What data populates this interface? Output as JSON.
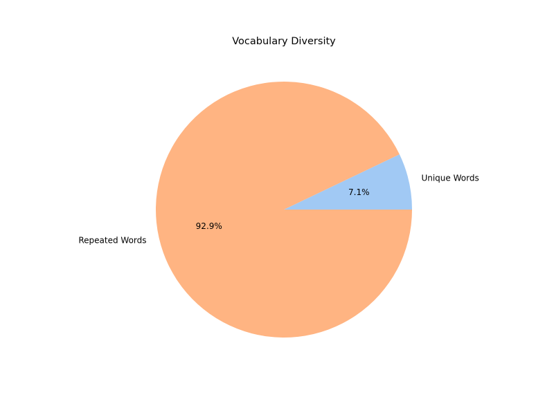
{
  "chart_data": {
    "type": "pie",
    "title": "Vocabulary Diversity",
    "slices": [
      {
        "label": "Unique Words",
        "value": 7.1,
        "pct_label": "7.1%",
        "color": "#a1c9f4"
      },
      {
        "label": "Repeated Words",
        "value": 92.9,
        "pct_label": "92.9%",
        "color": "#ffb482"
      }
    ],
    "start_angle_deg": 0,
    "direction": "counterclockwise",
    "legend": "none"
  }
}
